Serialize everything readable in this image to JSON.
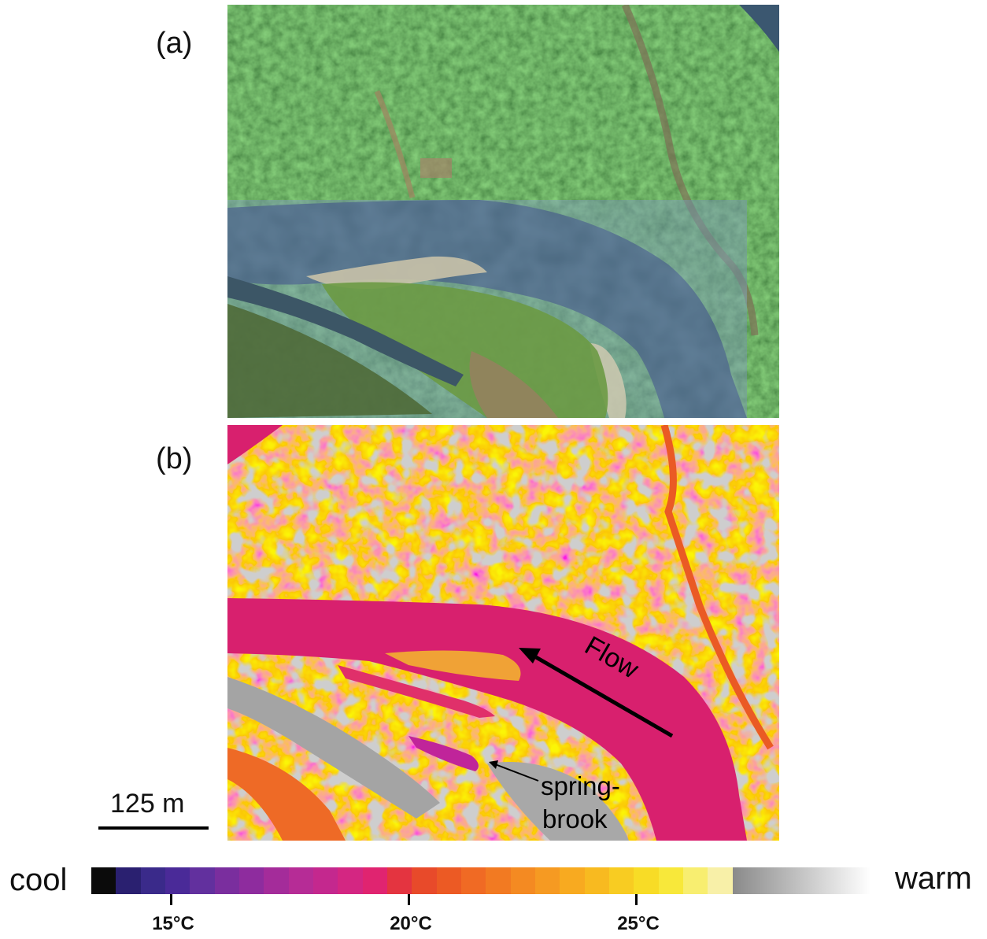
{
  "panels": {
    "a_label": "(a)",
    "b_label": "(b)"
  },
  "annotations": {
    "flow": "Flow",
    "springbrook_line1": "spring-",
    "springbrook_line2": "brook"
  },
  "scale_bar": {
    "label": "125 m"
  },
  "colorbar": {
    "left_label": "cool",
    "right_label": "warm",
    "ticks": [
      "15°C",
      "20°C",
      "25°C"
    ],
    "colors": [
      "#0b0b0b",
      "#2a2070",
      "#3a2a8a",
      "#4a2a98",
      "#62309e",
      "#7a2e9e",
      "#8e2c9e",
      "#a42c9a",
      "#b62c96",
      "#c4288e",
      "#d42682",
      "#e02470",
      "#e43440",
      "#e84a2a",
      "#ec5a24",
      "#f06a24",
      "#f27a22",
      "#f48a22",
      "#f69a22",
      "#f8aa20",
      "#f8ba20",
      "#f8cc22",
      "#f8dc26",
      "#f8e83a",
      "#f8ee70",
      "#f8f0a8"
    ]
  }
}
